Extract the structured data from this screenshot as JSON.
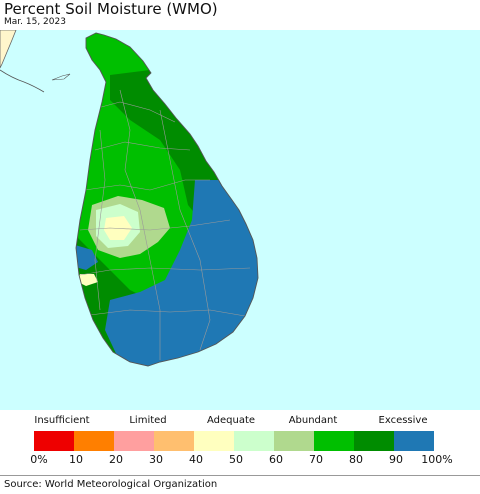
{
  "header": {
    "title": "Percent Soil Moisture (WMO)",
    "date": "Mar. 15, 2023"
  },
  "map": {
    "region": "Sri Lanka",
    "ocean_color": "#ccffff",
    "land_outside_color": "#fff6cc",
    "boundary_color": "#9a9a9a"
  },
  "legend": {
    "categories": [
      "Insufficient",
      "Limited",
      "Adequate",
      "Abundant",
      "Excessive"
    ],
    "colors": [
      "#ee0000",
      "#ff7f00",
      "#ff9f9f",
      "#ffbf6f",
      "#ffffbf",
      "#ccffcc",
      "#b0d98e",
      "#00bf00",
      "#008c00",
      "#1f78b4"
    ],
    "ticks": [
      "0%",
      "10",
      "20",
      "30",
      "40",
      "50",
      "60",
      "70",
      "80",
      "90",
      "100%"
    ]
  },
  "footer": {
    "source": "Source: World Meteorological Organization"
  }
}
